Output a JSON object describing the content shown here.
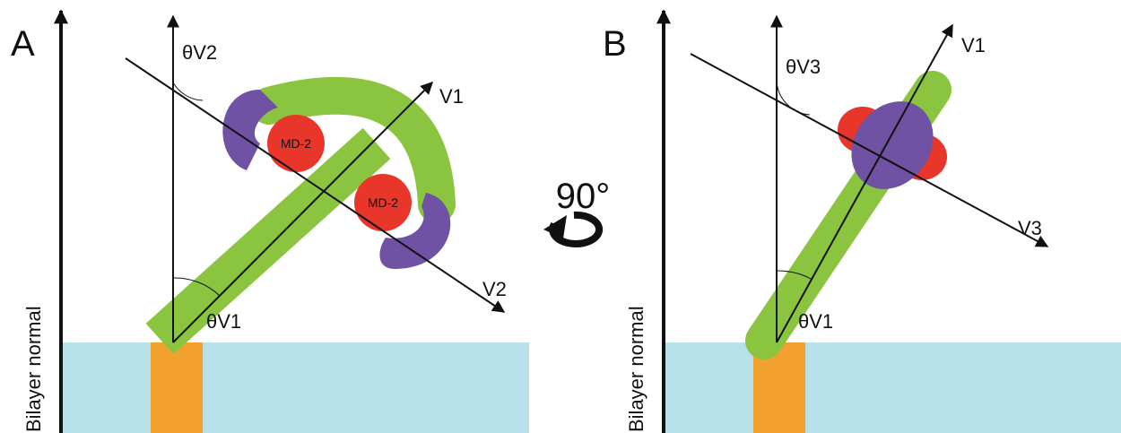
{
  "panels": [
    {
      "label": "A",
      "axis_label": "Bilayer normal",
      "angle_top": "θV2",
      "vector_1": "V1",
      "vector_2": "V2",
      "angle_bottom": "θV1",
      "md2_labels": [
        "MD-2",
        "MD-2"
      ]
    },
    {
      "label": "B",
      "axis_label": "Bilayer normal",
      "angle_top": "θV3",
      "vector_1": "V1",
      "vector_2": "V3",
      "angle_bottom": "θV1"
    }
  ],
  "rotation": "90°"
}
